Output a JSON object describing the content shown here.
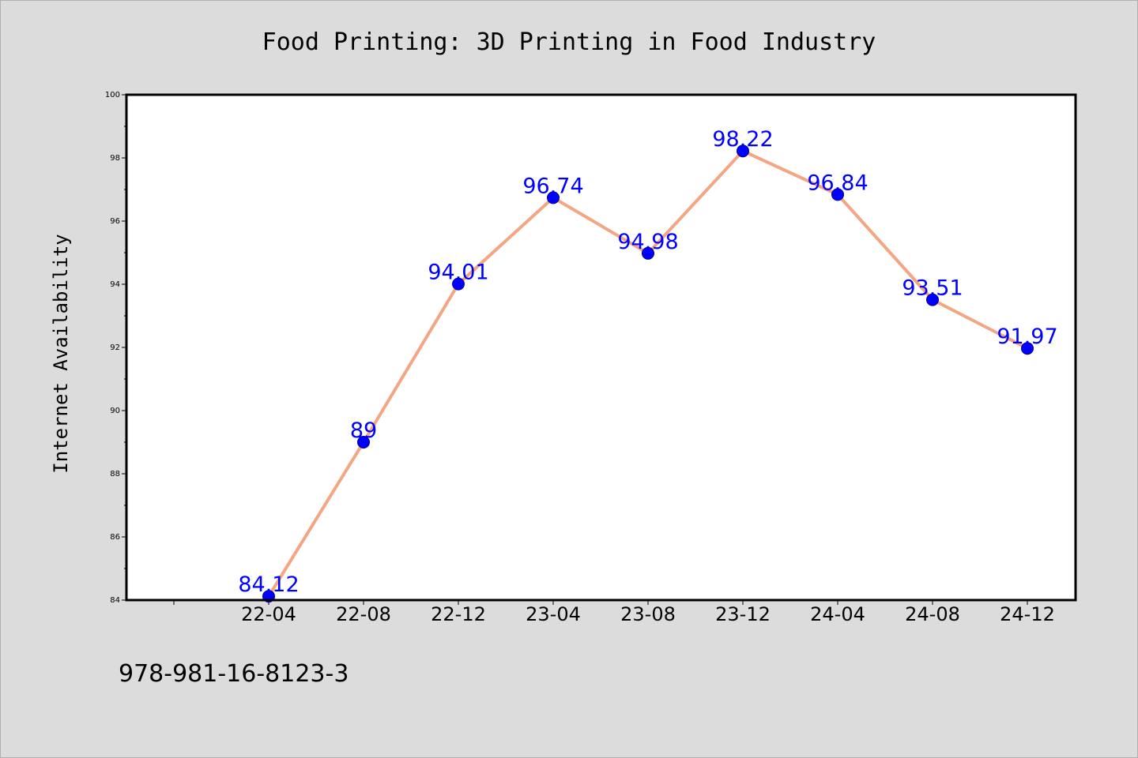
{
  "chart_data": {
    "type": "line",
    "title": "Food Printing: 3D Printing in Food Industry",
    "xlabel": "",
    "ylabel": "Internet Availability",
    "categories": [
      "22-04",
      "22-08",
      "22-12",
      "23-04",
      "23-08",
      "23-12",
      "24-04",
      "24-08",
      "24-12"
    ],
    "series": [
      {
        "values": [
          84.12,
          89,
          94.01,
          96.74,
          94.98,
          98.22,
          96.84,
          93.51,
          91.97
        ],
        "labels": [
          "84.12",
          "89",
          "94.01",
          "96.74",
          "94.98",
          "98.22",
          "96.84",
          "93.51",
          "91.97"
        ],
        "line_color": "#f4a582",
        "marker_color": "#0000ff"
      }
    ],
    "ylim": [
      84,
      100
    ],
    "yticks": [
      "84",
      "86",
      "88",
      "90",
      "92",
      "94",
      "96",
      "98",
      "100"
    ],
    "grid": false,
    "legend": "none"
  },
  "footer": {
    "note": "978-981-16-8123-3"
  },
  "colors": {
    "background": "#dcdcdc",
    "plot_background": "#ffffff"
  }
}
